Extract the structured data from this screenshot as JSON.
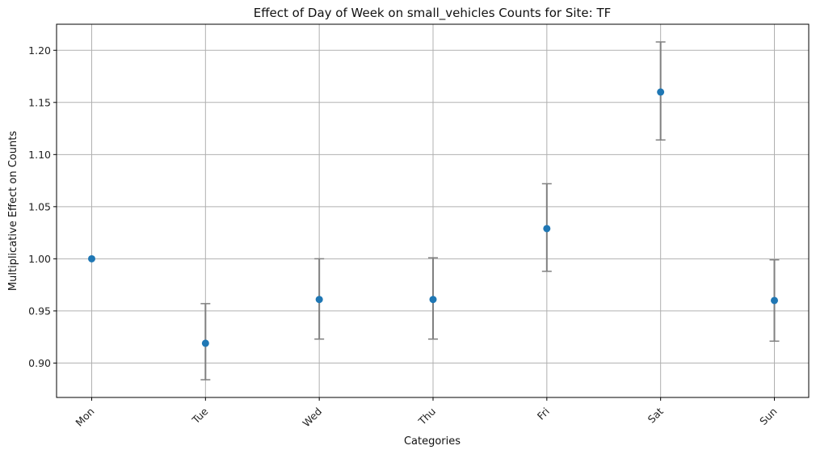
{
  "chart_data": {
    "type": "scatter",
    "title": "Effect of Day of Week on small_vehicles Counts for Site: TF",
    "xlabel": "Categories",
    "ylabel": "Multiplicative Effect on Counts",
    "categories": [
      "Mon",
      "Tue",
      "Wed",
      "Thu",
      "Fri",
      "Sat",
      "Sun"
    ],
    "values": [
      1.0,
      0.919,
      0.961,
      0.961,
      1.029,
      1.16,
      0.96
    ],
    "lower": [
      null,
      0.884,
      0.923,
      0.923,
      0.988,
      1.114,
      0.921
    ],
    "upper": [
      null,
      0.957,
      1.0,
      1.001,
      1.072,
      1.208,
      0.999
    ],
    "ylim": [
      0.867,
      1.225
    ],
    "yticks": [
      "0.90",
      "0.95",
      "1.00",
      "1.05",
      "1.10",
      "1.15",
      "1.20"
    ],
    "grid": true,
    "colors": {
      "point": "#1f77b4",
      "errorbar": "#808080",
      "grid": "#b0b0b0"
    }
  }
}
